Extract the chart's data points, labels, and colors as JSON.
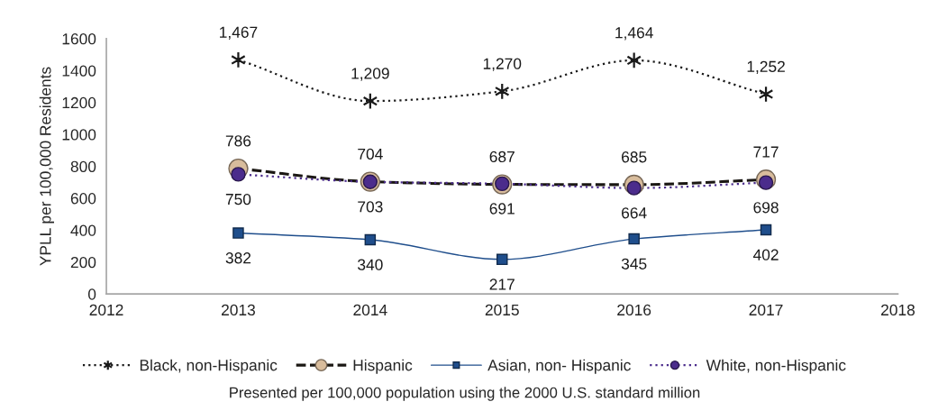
{
  "chart_data": {
    "type": "line",
    "ylabel": "YPLL per 100,000 Residents",
    "annotations": [
      "Presented per 100,000 population using the 2000 U.S. standard million"
    ],
    "x": [
      2013,
      2014,
      2015,
      2016,
      2017
    ],
    "xlim": [
      2012,
      2018
    ],
    "xticks": [
      2012,
      2013,
      2014,
      2015,
      2016,
      2017,
      2018
    ],
    "ylim": [
      0,
      1600
    ],
    "yticks": [
      0,
      200,
      400,
      600,
      800,
      1000,
      1200,
      1400,
      1600
    ],
    "legend": "bottom",
    "series": [
      {
        "name": "Black, non-Hispanic",
        "color": "#1a1a1a",
        "marker": "cross",
        "line_style": "dotted",
        "values": [
          1467,
          1209,
          1270,
          1464,
          1252
        ],
        "value_labels": [
          "1,467",
          "1,209",
          "1,270",
          "1,464",
          "1,252"
        ]
      },
      {
        "name": "Hispanic",
        "color": "#d8bc9c",
        "marker": "circle",
        "line_style": "dashed",
        "values": [
          786,
          704,
          687,
          685,
          717
        ],
        "value_labels": [
          "786",
          "704",
          "687",
          "685",
          "717"
        ]
      },
      {
        "name": "Asian, non- Hispanic",
        "color": "#1f4e8c",
        "marker": "square",
        "line_style": "solid",
        "values": [
          382,
          340,
          217,
          345,
          402
        ],
        "value_labels": [
          "382",
          "340",
          "217",
          "345",
          "402"
        ]
      },
      {
        "name": "White, non-Hispanic",
        "color": "#4b2c8c",
        "marker": "circle",
        "line_style": "dotted",
        "values": [
          750,
          703,
          691,
          664,
          698
        ],
        "value_labels": [
          "750",
          "703",
          "691",
          "664",
          "698"
        ]
      }
    ]
  }
}
